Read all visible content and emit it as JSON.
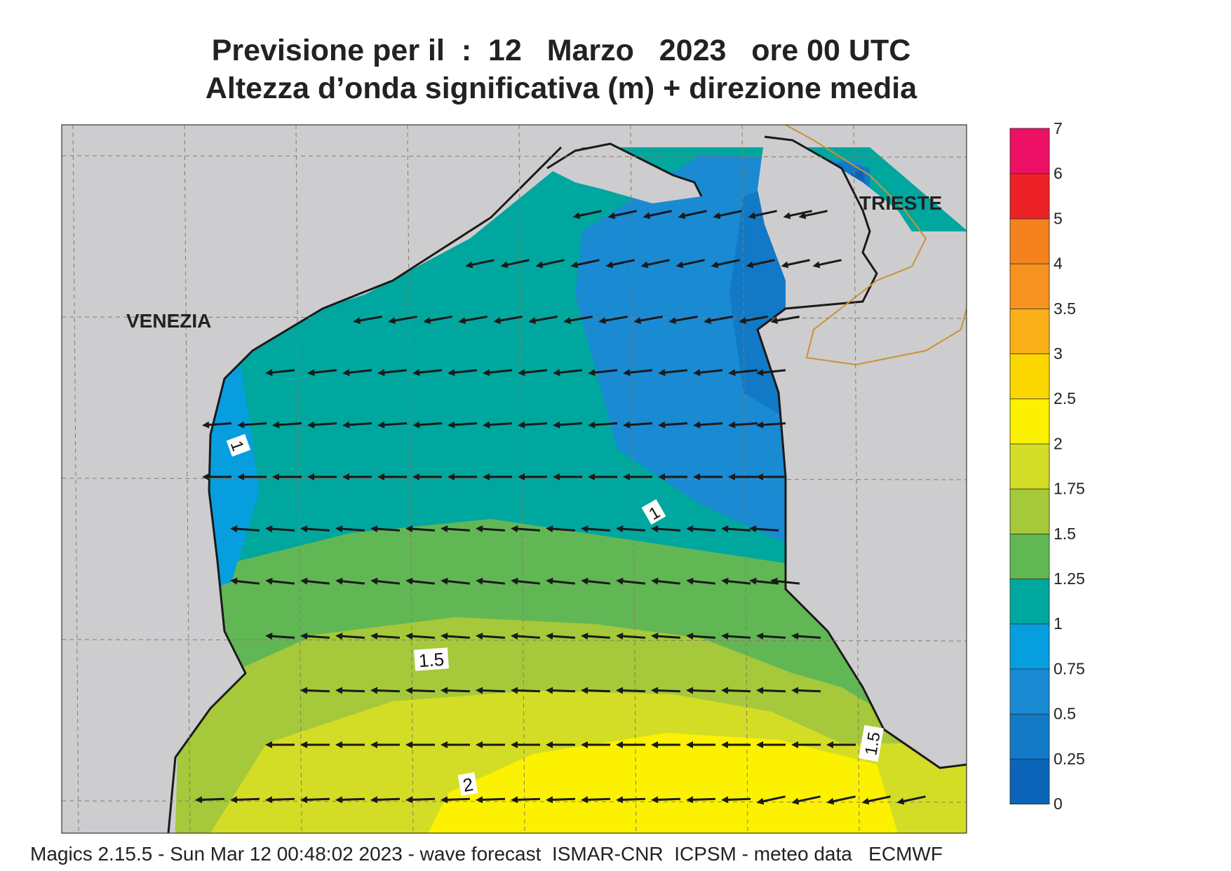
{
  "title": {
    "line1": "Previsione per il  :  12   Marzo   2023   ore 00 UTC",
    "line2": "Altezza d’onda significativa (m) + direzione media"
  },
  "cities": [
    {
      "name": "VENEZIA"
    },
    {
      "name": "TRIESTE"
    }
  ],
  "contour_labels": [
    "1",
    "1",
    "1.5",
    "1.5",
    "2"
  ],
  "colorbar": {
    "levels": [
      "0",
      "0.25",
      "0.5",
      "0.75",
      "1",
      "1.25",
      "1.5",
      "1.75",
      "2",
      "2.5",
      "3",
      "3.5",
      "4",
      "5",
      "6",
      "7"
    ],
    "colors": [
      "#0c64b8",
      "#1279c6",
      "#1a8ad3",
      "#079ee0",
      "#00a79f",
      "#62b755",
      "#a5c93a",
      "#d4dd26",
      "#fcf100",
      "#fcd600",
      "#fbb019",
      "#f69320",
      "#f5811f",
      "#ec2227",
      "#ec1165"
    ]
  },
  "colors": {
    "land": "#cdcdcf",
    "coast": "#1a1a1a",
    "border": "#c89430",
    "grid": "#8a7a60",
    "arrow": "#1a1a1a"
  },
  "footer": "Magics 2.15.5 - Sun Mar 12 00:48:02 2023 - wave forecast  ISMAR-CNR  ICPSM - meteo data   ECMWF"
}
